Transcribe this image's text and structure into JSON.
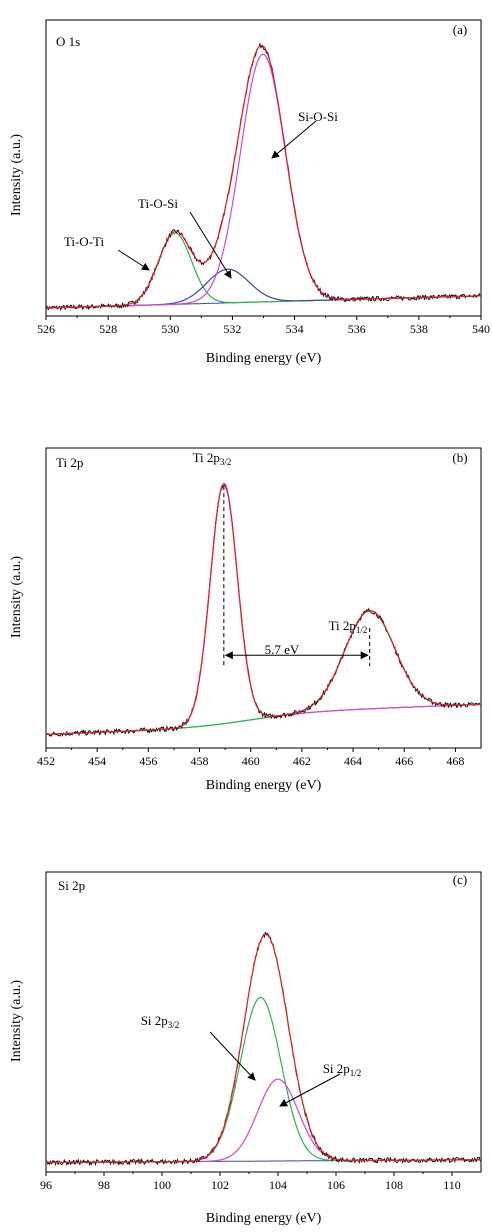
{
  "colors": {
    "raw": "#000000",
    "envelope": "#e8222a",
    "green": "#2db34a",
    "magenta": "#d048c8",
    "blue": "#3b47b0",
    "axis": "#000000"
  },
  "chart_data": [
    {
      "type": "line",
      "panel_label": "(a)",
      "element_label": "O 1s",
      "xlabel": "Binding energy (eV)",
      "ylabel": "Intensity (a.u.)",
      "xlim": [
        526,
        540
      ],
      "ylim": [
        0,
        1.1
      ],
      "xticks": [
        526,
        528,
        530,
        532,
        534,
        536,
        538,
        540
      ],
      "baseline": {
        "start": 0.03,
        "end": 0.075
      },
      "peaks": [
        {
          "name": "Ti-O-Ti",
          "center": 530.15,
          "height": 0.265,
          "fwhm": 1.25,
          "color": "green"
        },
        {
          "name": "Ti-O-Si",
          "center": 531.85,
          "height": 0.125,
          "fwhm": 1.6,
          "color": "blue"
        },
        {
          "name": "Si-O-Si",
          "center": 532.98,
          "height": 0.92,
          "fwhm": 1.7,
          "color": "magenta"
        }
      ],
      "annotations": [
        {
          "text": "Ti-O-Ti"
        },
        {
          "text": "Ti-O-Si"
        },
        {
          "text": "Si-O-Si"
        }
      ]
    },
    {
      "type": "line",
      "panel_label": "(b)",
      "element_label": "Ti 2p",
      "xlabel": "Binding energy (eV)",
      "ylabel": "Intensity (a.u.)",
      "xlim": [
        452,
        469
      ],
      "ylim": [
        0,
        1.1
      ],
      "xticks": [
        452,
        454,
        456,
        458,
        460,
        462,
        464,
        466,
        468
      ],
      "baseline": {
        "start": 0.05,
        "end": 0.11,
        "step_center": 460,
        "step_width": 1.2,
        "step_height": 0.05
      },
      "peaks": [
        {
          "name": "Ti 2p3/2",
          "center": 458.95,
          "height": 0.88,
          "fwhm": 1.25,
          "color": "magenta"
        },
        {
          "name": "Ti 2p1/2",
          "center": 464.65,
          "height": 0.36,
          "fwhm": 2.3,
          "color": "green"
        }
      ],
      "annotations": [
        {
          "text": "Ti 2p",
          "sub": "3/2"
        },
        {
          "text": "Ti 2p",
          "sub": "1/2"
        },
        {
          "text": "5.7 eV"
        }
      ]
    },
    {
      "type": "line",
      "panel_label": "(c)",
      "element_label": "Si 2p",
      "xlabel": "Binding energy (eV)",
      "ylabel": "Intensity (a.u.)",
      "xlim": [
        96,
        111
      ],
      "ylim": [
        0,
        1.1
      ],
      "xticks": [
        96,
        98,
        100,
        102,
        104,
        106,
        108,
        110
      ],
      "baseline": {
        "start": 0.035,
        "end": 0.045
      },
      "peaks": [
        {
          "name": "Si 2p3/2",
          "center": 103.4,
          "height": 0.6,
          "fwhm": 1.65,
          "color": "green"
        },
        {
          "name": "Si 2p1/2",
          "center": 104.0,
          "height": 0.3,
          "fwhm": 1.65,
          "color": "magenta"
        }
      ],
      "annotations": [
        {
          "text": "Si 2p",
          "sub": "3/2"
        },
        {
          "text": "Si 2p",
          "sub": "1/2"
        }
      ]
    }
  ]
}
